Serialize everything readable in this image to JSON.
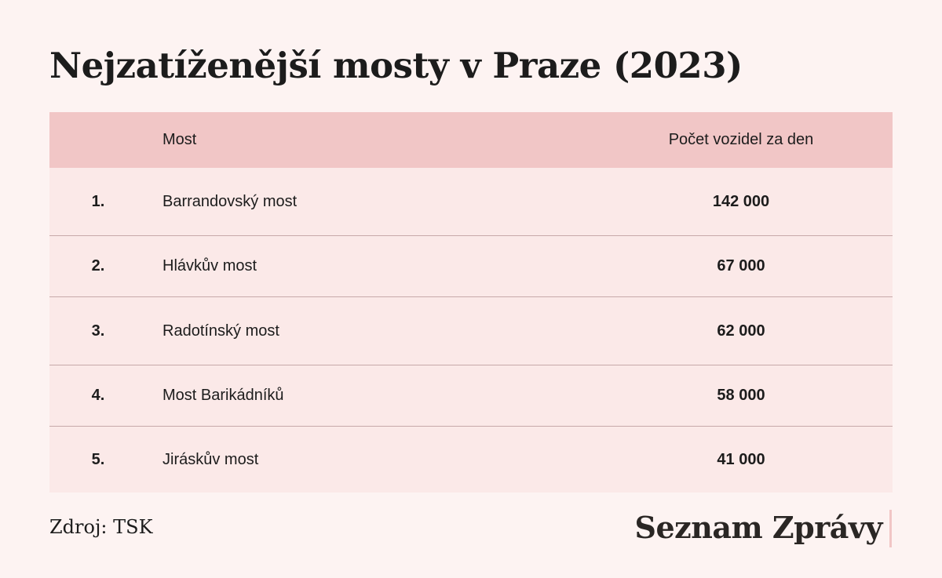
{
  "title": "Nejzatíženější mosty v Praze (2023)",
  "chart_data": {
    "type": "table",
    "title": "Nejzatíženější mosty v Praze (2023)",
    "columns": [
      "",
      "Most",
      "Počet vozidel za den"
    ],
    "rows": [
      {
        "rank": "1.",
        "name": "Barrandovský most",
        "value_label": "142 000",
        "value": 142000
      },
      {
        "rank": "2.",
        "name": "Hlávkův most",
        "value_label": "67 000",
        "value": 67000
      },
      {
        "rank": "3.",
        "name": "Radotínský most",
        "value_label": "62 000",
        "value": 62000
      },
      {
        "rank": "4.",
        "name": "Most Barikádníků",
        "value_label": "58 000",
        "value": 58000
      },
      {
        "rank": "5.",
        "name": "Jiráskův most",
        "value_label": "41 000",
        "value": 41000
      }
    ]
  },
  "footer": {
    "source": "Zdroj: TSK",
    "logo": "Seznam Zprávy"
  },
  "colors": {
    "background": "#fdf3f2",
    "header_bg": "#f1c6c6",
    "row_bg": "#fbe9e8",
    "divider": "#c7a9a9",
    "text": "#1c1c1c"
  }
}
